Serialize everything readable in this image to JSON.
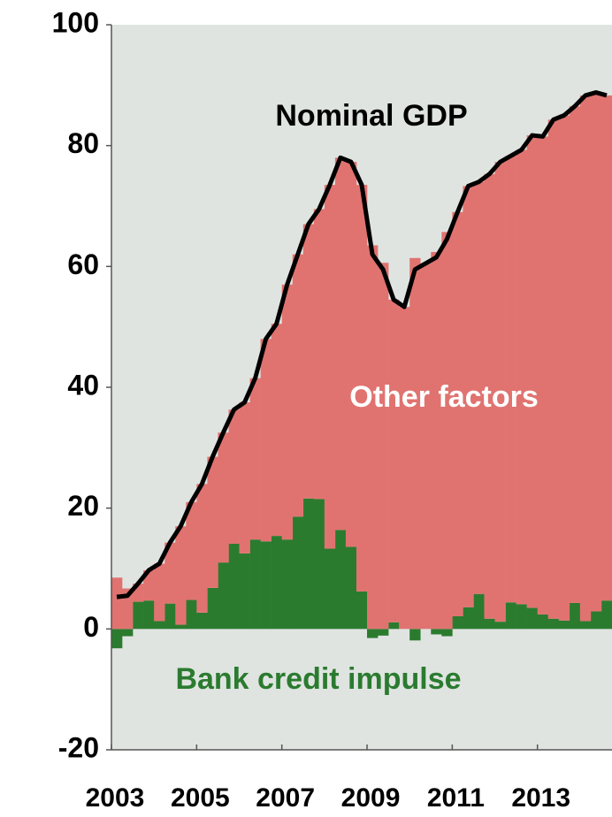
{
  "chart_data": {
    "type": "stacked-bar-line",
    "categories": [
      "2003",
      null,
      null,
      null,
      null,
      null,
      null,
      null,
      "2005",
      null,
      null,
      null,
      null,
      null,
      null,
      null,
      "2007",
      null,
      null,
      null,
      null,
      null,
      null,
      null,
      "2009",
      null,
      null,
      null,
      null,
      null,
      null,
      null,
      "2011",
      null,
      null,
      null,
      null,
      null,
      null,
      null,
      "2013",
      null,
      null,
      null,
      null,
      null,
      null
    ],
    "series": [
      {
        "name": "Bank credit impulse",
        "color": "#2b7b2f",
        "kind": "bar",
        "values": [
          -3.2,
          -1.2,
          4.5,
          4.7,
          1.3,
          4.2,
          0.7,
          4.8,
          2.7,
          6.8,
          11,
          14.1,
          12.5,
          14.8,
          14.5,
          15.4,
          14.8,
          18.6,
          21.6,
          21.5,
          13.3,
          16.4,
          13.6,
          6.2,
          -1.5,
          -1.1,
          1.1,
          0,
          -1.9,
          0,
          -0.9,
          -1.2,
          2.1,
          3.6,
          5.8,
          1.7,
          1.2,
          4.4,
          4.1,
          3.5,
          2.4,
          1.7,
          1.4,
          4.3,
          1.3,
          2.9,
          4.7
        ]
      },
      {
        "name": "Other factors",
        "color": "#e07370",
        "kind": "bar",
        "values": [
          8.5,
          6.7,
          3.0,
          5.0,
          9.5,
          10.1,
          16.3,
          16.2,
          21.3,
          21.7,
          21.5,
          22.2,
          25.0,
          26.7,
          33.5,
          35.1,
          42.2,
          43.4,
          45.4,
          48.0,
          60.2,
          61.6,
          63.7,
          67.3,
          63.5,
          60.6,
          53.4,
          53.3,
          61.4,
          60.5,
          62.4,
          65.7,
          66.9,
          69.7,
          68.2,
          73.6,
          76.1,
          73.9,
          75.2,
          78.2,
          79.1,
          82.6,
          83.6,
          82.2,
          87.0,
          85.9,
          83.6
        ]
      },
      {
        "name": "Nominal GDP",
        "color": "#000000",
        "kind": "line",
        "values": [
          5.3,
          5.5,
          7.5,
          9.7,
          10.8,
          14.3,
          17,
          21,
          24,
          28.5,
          32.5,
          36.3,
          37.5,
          41.5,
          48,
          50.5,
          57,
          62,
          67,
          69.5,
          73.5,
          78,
          77.3,
          73.5,
          62,
          59.5,
          54.5,
          53.3,
          59.5,
          60.5,
          61.5,
          64.5,
          69,
          73.3,
          74,
          75.3,
          77.3,
          78.3,
          79.3,
          81.7,
          81.5,
          84.3,
          85,
          86.5,
          88.3,
          88.8,
          88.3
        ]
      }
    ],
    "ylim": [
      -20,
      100
    ],
    "yticks": [
      -20,
      0,
      20,
      40,
      60,
      80,
      100
    ],
    "grid": false
  }
}
